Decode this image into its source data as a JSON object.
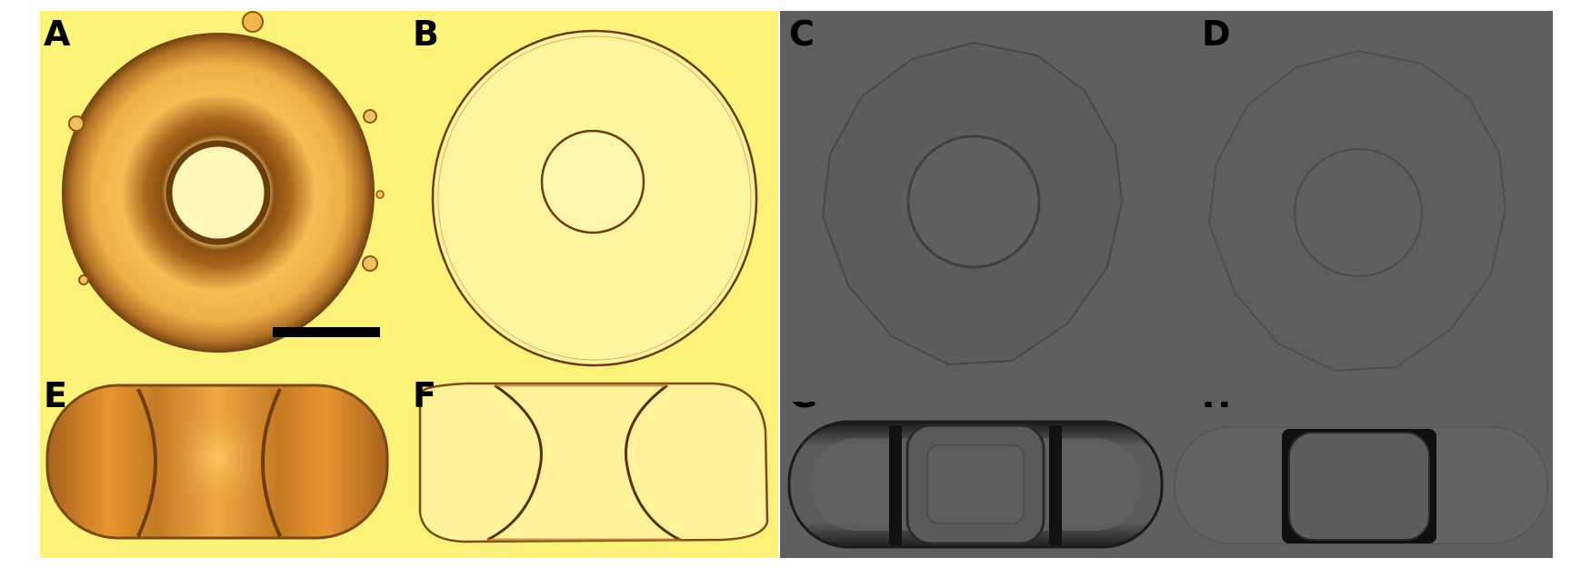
{
  "figure": {
    "panels": [
      {
        "label": "A",
        "imaging": "brightfield-microscopy",
        "view": "top",
        "tone": "amber"
      },
      {
        "label": "B",
        "imaging": "brightfield-microscopy",
        "view": "top",
        "tone": "pale-yellow"
      },
      {
        "label": "C",
        "imaging": "rendered-simulation",
        "view": "top",
        "tone": "gray"
      },
      {
        "label": "D",
        "imaging": "rendered-simulation",
        "view": "top",
        "tone": "gray"
      },
      {
        "label": "E",
        "imaging": "brightfield-microscopy",
        "view": "side",
        "tone": "amber"
      },
      {
        "label": "F",
        "imaging": "brightfield-microscopy",
        "view": "side",
        "tone": "pale-yellow"
      },
      {
        "label": "G",
        "imaging": "rendered-simulation",
        "view": "side",
        "tone": "gray"
      },
      {
        "label": "H",
        "imaging": "rendered-simulation",
        "view": "side",
        "tone": "gray"
      }
    ],
    "scale_bar": {
      "present": true,
      "panel": "A",
      "label_text": ""
    },
    "colors": {
      "microscopy_background": "#fdf27a",
      "amber_body": "#e9a13a",
      "amber_rim": "#7c4a10",
      "simulation_background": "#5f5f5f",
      "simulation_edge": "#474747",
      "scale_bar": "#000000",
      "label": "#000000"
    }
  }
}
